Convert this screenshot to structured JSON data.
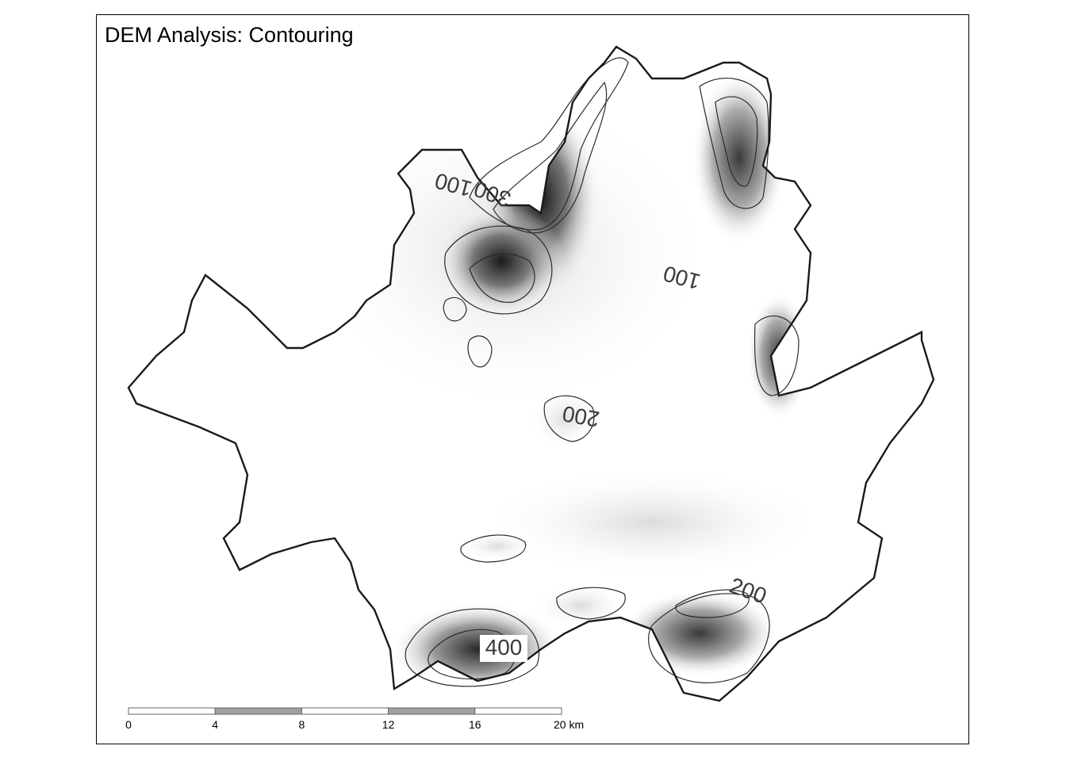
{
  "title": "DEM Analysis: Contouring",
  "contour_labels": [
    {
      "text": "100",
      "id": "nw-100"
    },
    {
      "text": "300",
      "id": "nw-300"
    },
    {
      "text": "100",
      "id": "ne-100"
    },
    {
      "text": "200",
      "id": "center-200"
    },
    {
      "text": "200",
      "id": "se-200"
    },
    {
      "text": "400",
      "id": "s-400"
    }
  ],
  "scale_bar": {
    "ticks": [
      "0",
      "4",
      "8",
      "12",
      "16",
      "20 km"
    ],
    "unit": "km",
    "max_km": 20,
    "fill_dark": "#a0a0a0",
    "fill_light": "#ffffff"
  },
  "colors": {
    "outline": "#1a1a1a",
    "contour": "#2b2b2b",
    "low_terrain": "#f2f2f2",
    "high_terrain": "#1e1e1e"
  }
}
